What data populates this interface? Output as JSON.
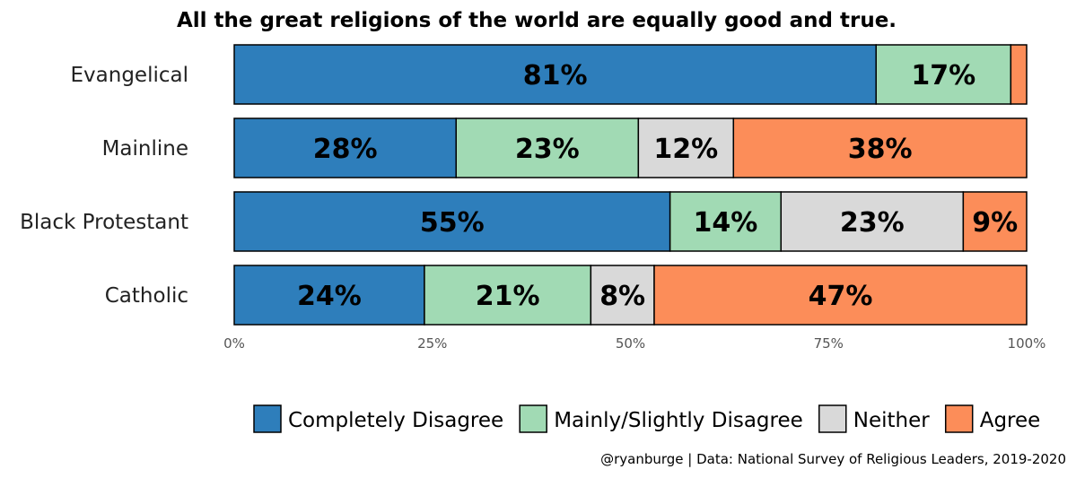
{
  "chart_data": {
    "type": "bar",
    "orientation": "horizontal",
    "stacked": true,
    "title": "All the great religions of the world are equally good and true.",
    "categories": [
      "Evangelical",
      "Mainline",
      "Black Protestant",
      "Catholic"
    ],
    "series": [
      {
        "name": "Completely Disagree",
        "color": "#2E7EBB",
        "values": [
          81,
          28,
          55,
          24
        ]
      },
      {
        "name": "Mainly/Slightly Disagree",
        "color": "#A1DAB4",
        "values": [
          17,
          23,
          14,
          21
        ]
      },
      {
        "name": "Neither",
        "color": "#D9D9D9",
        "values": [
          0,
          12,
          23,
          8
        ]
      },
      {
        "name": "Agree",
        "color": "#FC8D59",
        "values": [
          2,
          38,
          9,
          47
        ]
      }
    ],
    "data_labels": [
      [
        "81%",
        "17%",
        "",
        ""
      ],
      [
        "28%",
        "23%",
        "12%",
        "38%"
      ],
      [
        "55%",
        "14%",
        "23%",
        "9%"
      ],
      [
        "24%",
        "21%",
        "8%",
        "47%"
      ]
    ],
    "xlim": [
      0,
      100
    ],
    "x_ticks": [
      "0%",
      "25%",
      "50%",
      "75%",
      "100%"
    ],
    "legend_position": "bottom",
    "grid": false,
    "caption": "@ryanburge | Data: National Survey of Religious Leaders, 2019-2020"
  }
}
